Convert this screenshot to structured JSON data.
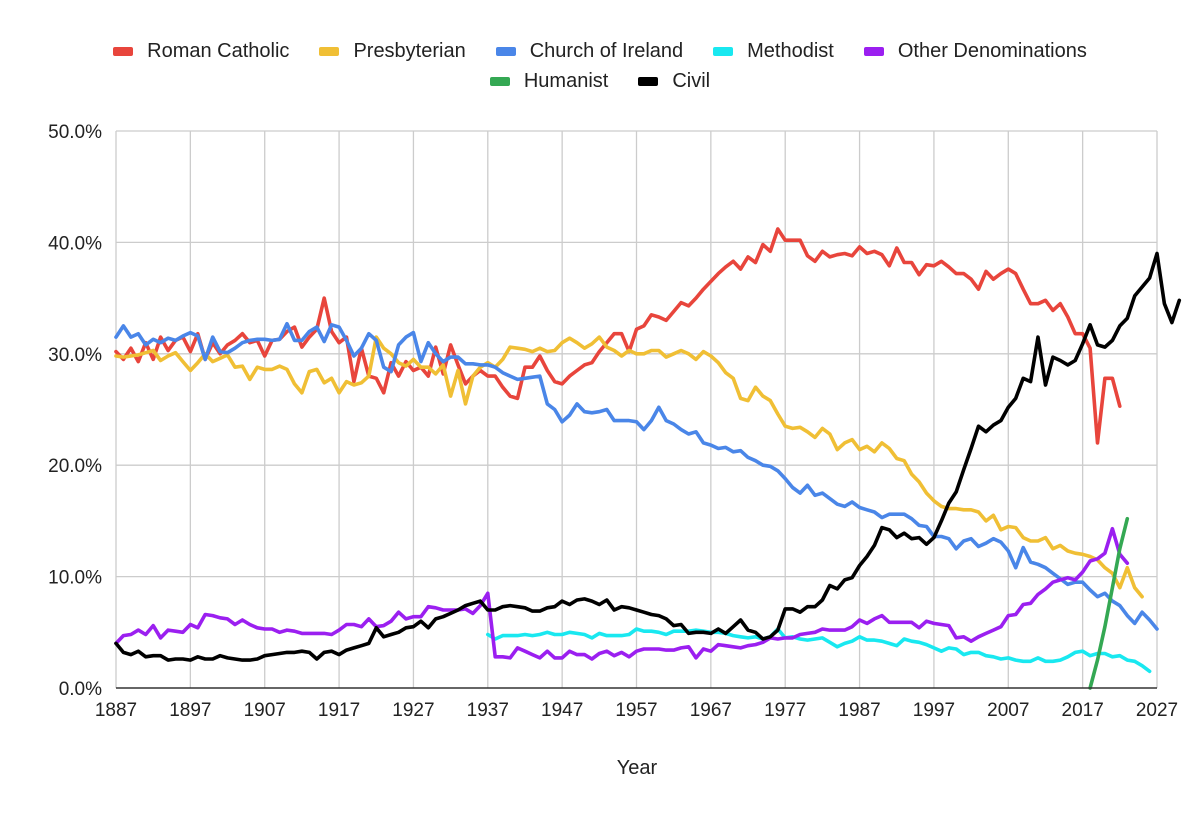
{
  "chart_data": {
    "type": "line",
    "title": "",
    "xlabel": "Year",
    "ylabel": "",
    "xlim": [
      1887,
      2027
    ],
    "ylim": [
      0,
      50
    ],
    "grid": true,
    "legend_position": "top-center",
    "x_ticks": [
      "1887",
      "1897",
      "1907",
      "1917",
      "1927",
      "1937",
      "1947",
      "1957",
      "1967",
      "1977",
      "1987",
      "1997",
      "2007",
      "2017",
      "2027"
    ],
    "y_ticks": [
      "0.0%",
      "10.0%",
      "20.0%",
      "30.0%",
      "40.0%",
      "50.0%"
    ],
    "y_tick_values": [
      0,
      10,
      20,
      30,
      40,
      50
    ],
    "x_tick_values": [
      1887,
      1897,
      1907,
      1917,
      1927,
      1937,
      1947,
      1957,
      1967,
      1977,
      1987,
      1997,
      2007,
      2017,
      2027
    ],
    "series": [
      {
        "name": "Roman Catholic",
        "color": "#e8453c",
        "start_year": 1887,
        "values": [
          30.2,
          29.5,
          30.5,
          29.3,
          31.0,
          29.5,
          31.5,
          30.3,
          31.2,
          31.5,
          30.2,
          31.8,
          29.5,
          31.0,
          30.0,
          30.8,
          31.2,
          31.8,
          31.0,
          31.2,
          29.8,
          31.2,
          31.3,
          32.0,
          32.4,
          30.6,
          31.5,
          32.2,
          35.0,
          32.0,
          31.0,
          31.5,
          27.5,
          30.5,
          28.0,
          27.8,
          26.5,
          29.2,
          28.0,
          29.3,
          28.5,
          28.8,
          28.0,
          30.6,
          28.2,
          30.8,
          29.0,
          27.3,
          28.0,
          28.5,
          28.0,
          28.0,
          27.0,
          26.2,
          26.0,
          28.8,
          28.8,
          29.8,
          28.5,
          27.5,
          27.3,
          28.0,
          28.5,
          29.0,
          29.2,
          30.2,
          31.0,
          31.8,
          31.8,
          30.2,
          32.2,
          32.5,
          33.5,
          33.3,
          33.0,
          33.8,
          34.6,
          34.3,
          35.0,
          35.8,
          36.5,
          37.2,
          37.8,
          38.3,
          37.6,
          38.7,
          38.2,
          39.8,
          39.2,
          41.2,
          40.2,
          40.2,
          40.2,
          38.8,
          38.3,
          39.2,
          38.7,
          38.9,
          39.0,
          38.8,
          39.6,
          39.0,
          39.2,
          38.9,
          37.9,
          39.5,
          38.2,
          38.2,
          37.1,
          38.0,
          37.9,
          38.3,
          37.8,
          37.2,
          37.2,
          36.7,
          35.8,
          37.4,
          36.7,
          37.2,
          37.6,
          37.2,
          35.8,
          34.5,
          34.5,
          34.8,
          33.9,
          34.5,
          33.3,
          31.8,
          31.8,
          30.5,
          22.0,
          27.8,
          27.8,
          25.3
        ]
      },
      {
        "name": "Presbyterian",
        "color": "#f0bf35",
        "start_year": 1887,
        "values": [
          29.8,
          29.7,
          29.8,
          29.9,
          30.1,
          30.3,
          29.4,
          29.8,
          30.1,
          29.3,
          28.5,
          29.2,
          30.0,
          29.3,
          29.6,
          29.9,
          28.8,
          28.9,
          27.7,
          28.8,
          28.6,
          28.6,
          28.9,
          28.6,
          27.3,
          26.5,
          28.4,
          28.6,
          27.4,
          27.8,
          26.5,
          27.5,
          27.2,
          27.4,
          28.0,
          31.5,
          30.5,
          30.0,
          29.2,
          28.9,
          29.5,
          28.8,
          28.8,
          28.2,
          29.0,
          26.2,
          28.5,
          25.5,
          28.0,
          28.8,
          29.2,
          28.8,
          29.5,
          30.6,
          30.5,
          30.4,
          30.2,
          30.5,
          30.2,
          30.3,
          31.0,
          31.4,
          31.0,
          30.5,
          30.9,
          31.5,
          30.6,
          30.3,
          29.8,
          30.3,
          30.0,
          30.0,
          30.3,
          30.3,
          29.7,
          30.0,
          30.3,
          30.0,
          29.5,
          30.2,
          29.8,
          29.2,
          28.3,
          27.8,
          26.0,
          25.8,
          27.0,
          26.2,
          25.8,
          24.6,
          23.5,
          23.3,
          23.4,
          23.0,
          22.5,
          23.3,
          22.8,
          21.4,
          22.0,
          22.3,
          21.4,
          21.7,
          21.2,
          22.0,
          21.5,
          20.6,
          20.4,
          19.2,
          18.5,
          17.5,
          16.8,
          16.3,
          16.1,
          16.1,
          16.0,
          16.0,
          15.8,
          15.0,
          15.5,
          14.2,
          14.5,
          14.4,
          13.5,
          13.2,
          13.2,
          13.5,
          12.5,
          12.8,
          12.3,
          12.1,
          12.0,
          11.8,
          11.5,
          10.8,
          10.3,
          9.0,
          10.8,
          9.0,
          8.2
        ]
      },
      {
        "name": "Church of Ireland",
        "color": "#4a86e8",
        "start_year": 1887,
        "values": [
          31.5,
          32.5,
          31.5,
          31.8,
          30.8,
          31.3,
          31.0,
          31.4,
          31.2,
          31.6,
          31.9,
          31.6,
          29.5,
          31.5,
          30.2,
          30.1,
          30.5,
          31.0,
          31.2,
          31.3,
          31.3,
          31.2,
          31.3,
          32.7,
          31.2,
          31.2,
          32.0,
          32.4,
          31.1,
          32.6,
          32.4,
          31.2,
          29.8,
          30.5,
          31.8,
          31.2,
          28.8,
          28.4,
          30.8,
          31.5,
          31.9,
          29.3,
          31.0,
          30.0,
          29.3,
          29.7,
          29.7,
          29.1,
          29.1,
          29.0,
          29.0,
          28.8,
          28.3,
          28.0,
          27.7,
          27.8,
          27.9,
          28.0,
          25.5,
          25.0,
          23.9,
          24.5,
          25.5,
          24.8,
          24.7,
          24.8,
          25.0,
          24.0,
          24.0,
          24.0,
          23.9,
          23.2,
          24.0,
          25.2,
          24.0,
          23.7,
          23.2,
          22.8,
          23.0,
          22.0,
          21.8,
          21.5,
          21.6,
          21.2,
          21.3,
          20.7,
          20.4,
          20.0,
          19.9,
          19.5,
          18.8,
          18.0,
          17.5,
          18.2,
          17.3,
          17.5,
          17.0,
          16.5,
          16.3,
          16.7,
          16.2,
          16.0,
          15.8,
          15.3,
          15.6,
          15.6,
          15.6,
          15.2,
          14.6,
          14.5,
          13.6,
          13.6,
          13.4,
          12.5,
          13.2,
          13.4,
          12.7,
          13.0,
          13.4,
          13.1,
          12.3,
          10.8,
          12.6,
          11.3,
          11.1,
          10.8,
          10.3,
          9.8,
          9.3,
          9.5,
          9.5,
          8.8,
          8.2,
          8.5,
          7.8,
          7.4,
          6.5,
          5.8,
          6.8,
          6.1,
          5.3
        ]
      },
      {
        "name": "Methodist",
        "color": "#19e8f0",
        "start_year": 1937,
        "values": [
          4.8,
          4.4,
          4.7,
          4.7,
          4.7,
          4.8,
          4.7,
          4.8,
          5.0,
          4.8,
          4.8,
          5.0,
          4.9,
          4.8,
          4.5,
          4.9,
          4.7,
          4.7,
          4.7,
          4.8,
          5.3,
          5.1,
          5.1,
          5.0,
          4.8,
          5.1,
          5.1,
          5.1,
          5.2,
          5.1,
          5.0,
          5.0,
          4.9,
          4.7,
          4.6,
          4.5,
          4.6,
          4.4,
          4.6,
          5.3,
          4.5,
          4.6,
          4.4,
          4.3,
          4.4,
          4.5,
          4.1,
          3.7,
          4.0,
          4.2,
          4.6,
          4.3,
          4.3,
          4.2,
          4.0,
          3.8,
          4.4,
          4.2,
          4.1,
          3.9,
          3.6,
          3.3,
          3.6,
          3.5,
          3.0,
          3.2,
          3.2,
          2.9,
          2.8,
          2.6,
          2.7,
          2.5,
          2.4,
          2.4,
          2.7,
          2.4,
          2.4,
          2.5,
          2.8,
          3.2,
          3.3,
          2.9,
          3.1,
          3.1,
          2.8,
          2.9,
          2.5,
          2.4,
          2.0,
          1.5
        ]
      },
      {
        "name": "Other Denominations",
        "color": "#9b1ff0",
        "start_year": 1887,
        "values": [
          4.0,
          4.7,
          4.8,
          5.2,
          4.8,
          5.6,
          4.5,
          5.2,
          5.1,
          5.0,
          5.7,
          5.4,
          6.6,
          6.5,
          6.3,
          6.2,
          5.7,
          6.1,
          5.7,
          5.4,
          5.3,
          5.3,
          5.0,
          5.2,
          5.1,
          4.9,
          4.9,
          4.9,
          4.9,
          4.8,
          5.2,
          5.7,
          5.7,
          5.5,
          6.2,
          5.5,
          5.6,
          6.0,
          6.8,
          6.2,
          6.4,
          6.4,
          7.3,
          7.2,
          7.0,
          7.0,
          7.0,
          7.1,
          6.7,
          7.4,
          8.5,
          2.8,
          2.8,
          2.7,
          3.6,
          3.3,
          3.0,
          2.7,
          3.3,
          2.7,
          2.7,
          3.3,
          3.0,
          3.0,
          2.6,
          3.1,
          3.3,
          2.9,
          3.2,
          2.8,
          3.3,
          3.5,
          3.5,
          3.5,
          3.4,
          3.4,
          3.6,
          3.7,
          2.7,
          3.5,
          3.3,
          3.9,
          3.8,
          3.7,
          3.6,
          3.8,
          3.9,
          4.1,
          4.5,
          4.4,
          4.5,
          4.5,
          4.8,
          4.9,
          5.0,
          5.3,
          5.2,
          5.2,
          5.2,
          5.5,
          6.1,
          5.8,
          6.2,
          6.5,
          5.9,
          5.9,
          5.9,
          5.9,
          5.4,
          6.0,
          5.8,
          5.7,
          5.6,
          4.5,
          4.6,
          4.2,
          4.6,
          4.9,
          5.2,
          5.5,
          6.5,
          6.6,
          7.5,
          7.6,
          8.4,
          8.9,
          9.5,
          9.7,
          9.9,
          9.7,
          10.4,
          11.4,
          11.6,
          12.1,
          14.3,
          12.0,
          11.2
        ]
      },
      {
        "name": "Humanist",
        "color": "#34a853",
        "start_year": 2018,
        "values": [
          0.0,
          2.5,
          5.5,
          9.0,
          12.5,
          15.2
        ]
      },
      {
        "name": "Civil",
        "color": "#000000",
        "start_year": 1887,
        "values": [
          4.0,
          3.2,
          3.0,
          3.3,
          2.8,
          2.9,
          2.9,
          2.5,
          2.6,
          2.6,
          2.5,
          2.8,
          2.6,
          2.6,
          2.9,
          2.7,
          2.6,
          2.5,
          2.5,
          2.6,
          2.9,
          3.0,
          3.1,
          3.2,
          3.2,
          3.3,
          3.2,
          2.6,
          3.2,
          3.3,
          3.0,
          3.4,
          3.6,
          3.8,
          4.0,
          5.4,
          4.6,
          4.8,
          5.0,
          5.4,
          5.5,
          6.0,
          5.4,
          6.2,
          6.4,
          6.7,
          7.0,
          7.4,
          7.6,
          7.8,
          7.0,
          7.0,
          7.3,
          7.4,
          7.3,
          7.2,
          6.9,
          6.9,
          7.2,
          7.3,
          7.8,
          7.5,
          7.9,
          8.0,
          7.8,
          7.5,
          7.9,
          7.0,
          7.3,
          7.2,
          7.0,
          6.8,
          6.6,
          6.5,
          6.2,
          5.6,
          5.7,
          4.9,
          5.0,
          5.0,
          4.9,
          5.3,
          4.9,
          5.5,
          6.1,
          5.2,
          5.0,
          4.4,
          4.6,
          5.2,
          7.1,
          7.1,
          6.8,
          7.3,
          7.3,
          7.9,
          9.2,
          8.9,
          9.7,
          9.9,
          11.0,
          11.8,
          12.8,
          14.4,
          14.2,
          13.5,
          13.9,
          13.4,
          13.5,
          12.9,
          13.5,
          15.0,
          16.6,
          17.6,
          19.6,
          21.5,
          23.5,
          23.0,
          23.6,
          24.0,
          25.2,
          26.0,
          27.8,
          27.5,
          31.5,
          27.2,
          29.7,
          29.4,
          29.0,
          29.4,
          30.9,
          32.6,
          30.8,
          30.6,
          31.2,
          32.5,
          33.2,
          35.2,
          36.0,
          36.8,
          39.0,
          34.5,
          32.8,
          34.8
        ]
      }
    ]
  }
}
